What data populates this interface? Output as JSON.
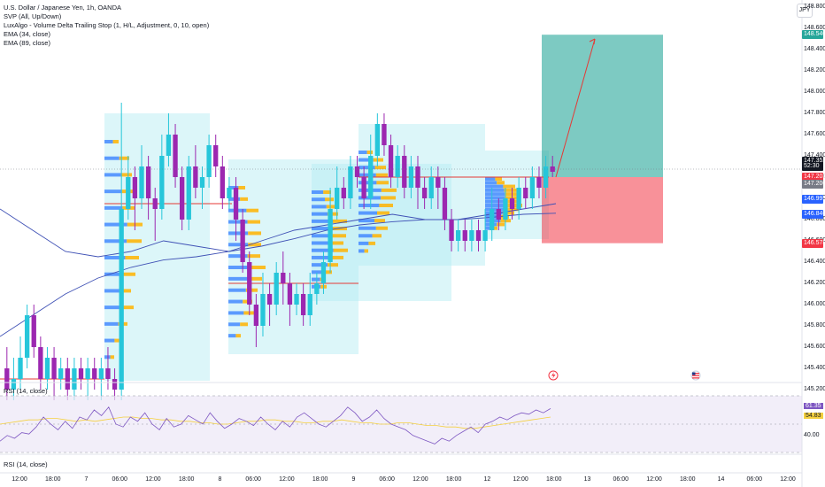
{
  "legend": {
    "symbol": "U.S. Dollar / Japanese Yen, 1h, OANDA",
    "indicators": [
      "SVP (All, Up/Down)",
      "LuxAlgo - Volume Delta Trailing Stop (1, H/L, Adjustment, 0, 10, open)",
      "EMA (34, close)",
      "EMA (89, close)"
    ]
  },
  "rsi_panes": [
    "RSI (14, close)",
    "RSI (14, close)"
  ],
  "currency": "JPY",
  "colors": {
    "up": "#26c6da",
    "down": "#9c27b0",
    "target_zone": "#26a69a",
    "stop_zone": "#f23645",
    "level_line": "#e53935",
    "ema": "#3f51b5",
    "rsi": "#7e57c2",
    "rsi_ma": "#f4d03f"
  },
  "chart_data": {
    "type": "candlestick",
    "title": "U.S. Dollar / Japanese Yen, 1h, OANDA",
    "price_axis": {
      "range": [
        145.1,
        148.8
      ],
      "ticks": [
        "148.800",
        "148.600",
        "148.400",
        "148.200",
        "148.000",
        "147.800",
        "147.600",
        "147.400",
        "147.200",
        "147.000",
        "146.800",
        "146.600",
        "146.400",
        "146.200",
        "146.000",
        "145.800",
        "145.600",
        "145.400",
        "145.200"
      ]
    },
    "time_axis": {
      "ticks": [
        "12:00",
        "18:00",
        "7",
        "06:00",
        "12:00",
        "18:00",
        "8",
        "06:00",
        "12:00",
        "18:00",
        "9",
        "06:00",
        "12:00",
        "18:00",
        "12",
        "12:00",
        "18:00",
        "13",
        "06:00",
        "12:00",
        "18:00",
        "14",
        "06:00",
        "12:00"
      ]
    },
    "candles": [
      [
        145.4,
        145.2,
        145.6,
        145.1
      ],
      [
        145.2,
        145.3,
        145.5,
        145.1
      ],
      [
        145.3,
        145.5,
        145.7,
        145.2
      ],
      [
        145.5,
        145.9,
        146.0,
        145.4
      ],
      [
        145.9,
        145.6,
        146.0,
        145.5
      ],
      [
        145.6,
        145.3,
        145.7,
        145.2
      ],
      [
        145.3,
        145.5,
        145.6,
        145.2
      ],
      [
        145.5,
        145.3,
        145.6,
        145.1
      ],
      [
        145.3,
        145.4,
        145.5,
        145.2
      ],
      [
        145.4,
        145.2,
        145.5,
        145.1
      ],
      [
        145.2,
        145.4,
        145.5,
        145.1
      ],
      [
        145.4,
        145.3,
        145.5,
        145.2
      ],
      [
        145.3,
        145.4,
        145.5,
        145.1
      ],
      [
        145.4,
        145.3,
        145.5,
        145.2
      ],
      [
        145.3,
        145.4,
        145.5,
        145.1
      ],
      [
        145.4,
        145.3,
        145.6,
        145.2
      ],
      [
        145.3,
        145.2,
        145.4,
        145.1
      ],
      [
        145.2,
        146.9,
        147.9,
        145.1
      ],
      [
        146.9,
        147.2,
        147.4,
        146.8
      ],
      [
        147.2,
        147.0,
        147.3,
        146.7
      ],
      [
        147.0,
        147.3,
        147.5,
        146.9
      ],
      [
        147.3,
        147.0,
        147.4,
        146.8
      ],
      [
        147.0,
        146.9,
        147.1,
        146.6
      ],
      [
        146.9,
        147.4,
        147.6,
        146.8
      ],
      [
        147.4,
        147.6,
        147.8,
        147.3
      ],
      [
        147.6,
        147.2,
        147.7,
        147.1
      ],
      [
        147.2,
        146.8,
        147.3,
        146.7
      ],
      [
        146.8,
        147.3,
        147.4,
        146.7
      ],
      [
        147.3,
        147.1,
        147.5,
        147.0
      ],
      [
        147.1,
        147.2,
        147.3,
        146.9
      ],
      [
        147.2,
        147.5,
        147.6,
        147.1
      ],
      [
        147.5,
        147.3,
        147.6,
        147.2
      ],
      [
        147.3,
        147.0,
        147.4,
        146.9
      ],
      [
        147.0,
        147.1,
        147.2,
        146.9
      ],
      [
        147.1,
        146.8,
        147.2,
        146.6
      ],
      [
        146.8,
        146.4,
        146.9,
        146.3
      ],
      [
        146.4,
        146.0,
        146.5,
        145.9
      ],
      [
        146.0,
        145.8,
        146.1,
        145.6
      ],
      [
        145.8,
        146.1,
        146.3,
        145.7
      ],
      [
        146.1,
        146.0,
        146.2,
        145.8
      ],
      [
        146.0,
        146.3,
        146.4,
        145.9
      ],
      [
        146.3,
        146.2,
        146.5,
        146.0
      ],
      [
        146.2,
        146.0,
        146.3,
        145.8
      ],
      [
        146.0,
        146.1,
        146.2,
        145.9
      ],
      [
        146.1,
        145.9,
        146.2,
        145.8
      ],
      [
        145.9,
        146.1,
        146.3,
        145.8
      ],
      [
        146.1,
        146.2,
        146.3,
        146.0
      ],
      [
        146.2,
        146.4,
        146.5,
        146.1
      ],
      [
        146.4,
        146.9,
        147.1,
        146.3
      ],
      [
        146.9,
        147.1,
        147.3,
        146.8
      ],
      [
        147.1,
        147.0,
        147.2,
        146.9
      ],
      [
        147.0,
        147.3,
        147.4,
        146.9
      ],
      [
        147.3,
        147.2,
        147.4,
        147.1
      ],
      [
        147.2,
        147.0,
        147.3,
        146.9
      ],
      [
        147.0,
        147.4,
        147.6,
        146.9
      ],
      [
        147.4,
        147.7,
        147.8,
        147.3
      ],
      [
        147.7,
        147.5,
        147.8,
        147.4
      ],
      [
        147.5,
        147.2,
        147.6,
        147.1
      ],
      [
        147.2,
        147.4,
        147.5,
        147.1
      ],
      [
        147.4,
        147.1,
        147.5,
        147.0
      ],
      [
        147.1,
        147.3,
        147.4,
        147.0
      ],
      [
        147.3,
        147.1,
        147.4,
        146.9
      ],
      [
        147.1,
        147.0,
        147.2,
        146.9
      ],
      [
        147.0,
        147.2,
        147.3,
        146.9
      ],
      [
        147.2,
        147.1,
        147.3,
        146.9
      ],
      [
        147.1,
        146.8,
        147.2,
        146.7
      ],
      [
        146.8,
        146.6,
        146.9,
        146.5
      ],
      [
        146.6,
        146.7,
        146.8,
        146.5
      ],
      [
        146.7,
        146.6,
        146.8,
        146.5
      ],
      [
        146.6,
        146.7,
        146.8,
        146.5
      ],
      [
        146.7,
        146.6,
        146.8,
        146.5
      ],
      [
        146.6,
        146.7,
        146.9,
        146.5
      ],
      [
        146.7,
        146.9,
        147.1,
        146.6
      ],
      [
        146.9,
        146.8,
        147.0,
        146.7
      ],
      [
        146.8,
        147.0,
        147.1,
        146.7
      ],
      [
        147.0,
        146.9,
        147.1,
        146.8
      ],
      [
        146.9,
        147.1,
        147.2,
        146.8
      ],
      [
        147.1,
        147.0,
        147.2,
        146.9
      ],
      [
        147.0,
        147.2,
        147.3,
        146.9
      ],
      [
        147.2,
        147.1,
        147.3,
        147.0
      ],
      [
        147.1,
        147.3,
        147.4,
        147.0
      ],
      [
        147.3,
        147.25,
        147.4,
        147.2
      ]
    ],
    "ema_34": [
      146.9,
      146.7,
      146.5,
      146.45,
      146.5,
      146.6,
      146.55,
      146.5,
      146.6,
      146.7,
      146.75,
      146.8,
      146.85,
      146.8,
      146.8,
      146.85,
      146.9,
      146.95
    ],
    "ema_89": [
      145.7,
      145.9,
      146.1,
      146.25,
      146.35,
      146.42,
      146.45,
      146.5,
      146.55,
      146.62,
      146.7,
      146.75,
      146.78,
      146.8,
      146.8,
      146.82,
      146.85,
      146.86
    ],
    "levels": [
      147.2,
      146.2,
      146.95,
      145.3
    ],
    "position": {
      "entry": 147.2,
      "target": 148.54,
      "stop": 146.578
    },
    "axis_tags": [
      {
        "label": "148.540",
        "value": 148.54,
        "color": "#26a69a"
      },
      {
        "label": "147.352",
        "value": 147.352,
        "color": "#131722"
      },
      {
        "label": "52:30",
        "value": 147.3,
        "color": "#131722"
      },
      {
        "label": "147.203",
        "value": 147.203,
        "color": "#f23645"
      },
      {
        "label": "147.200",
        "value": 147.13,
        "color": "#787b86"
      },
      {
        "label": "146.995",
        "value": 146.995,
        "color": "#2962ff"
      },
      {
        "label": "146.846",
        "value": 146.846,
        "color": "#2962ff"
      },
      {
        "label": "146.578",
        "value": 146.578,
        "color": "#f23645"
      }
    ],
    "rsi": {
      "ticks": [
        "61.35",
        "54.83",
        "40.00"
      ],
      "values": [
        38,
        42,
        40,
        44,
        43,
        48,
        55,
        50,
        46,
        52,
        47,
        55,
        53,
        60,
        56,
        62,
        50,
        48,
        55,
        52,
        58,
        50,
        46,
        54,
        48,
        50,
        56,
        53,
        50,
        58,
        52,
        47,
        50,
        54,
        52,
        49,
        55,
        50,
        46,
        52,
        48,
        55,
        58,
        54,
        50,
        48,
        52,
        56,
        62,
        58,
        52,
        55,
        60,
        54,
        50,
        48,
        46,
        42,
        40,
        38,
        36,
        40,
        38,
        42,
        45,
        48,
        44,
        50,
        52,
        55,
        53,
        56,
        58,
        57,
        60,
        58,
        61
      ],
      "ma": [
        50,
        51,
        52,
        53,
        53,
        54,
        54,
        53,
        52,
        53,
        52,
        53,
        54,
        55,
        55,
        54,
        54,
        53,
        53,
        52,
        52,
        51,
        51,
        50,
        50,
        51,
        52,
        52,
        53,
        53,
        52,
        52,
        51,
        51,
        52,
        52,
        53,
        52,
        51,
        51,
        50,
        50,
        51,
        51,
        50,
        49,
        49,
        48,
        48,
        47,
        47,
        48,
        49,
        50,
        51,
        52,
        53,
        54,
        55
      ]
    }
  }
}
